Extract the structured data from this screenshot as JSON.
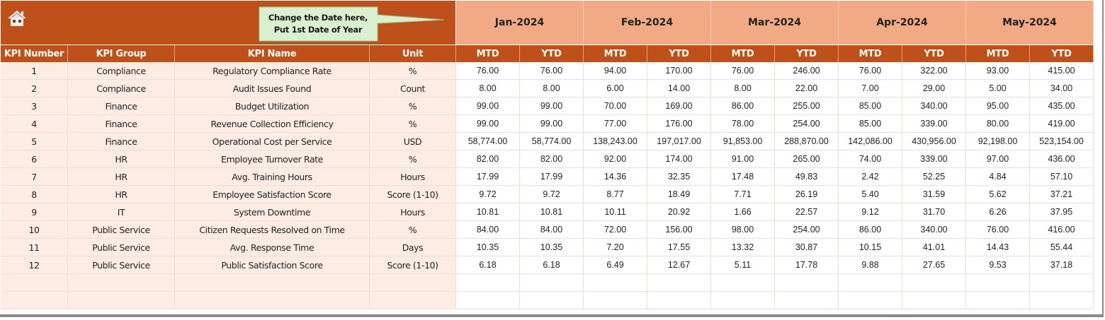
{
  "banner": {
    "home_icon": "home-icon",
    "callout_line1": "Change the Date here,",
    "callout_line2": "Put 1st Date of Year"
  },
  "colors": {
    "header_dark": "#C0501A",
    "month_header": "#F2AA84",
    "left_cells": "#FDECE4",
    "callout_fill": "#D9F0CF"
  },
  "columns": {
    "kpi_number": "KPI Number",
    "kpi_group": "KPI Group",
    "kpi_name": "KPI Name",
    "unit": "Unit",
    "mtd": "MTD",
    "ytd": "YTD"
  },
  "months": [
    "Jan-2024",
    "Feb-2024",
    "Mar-2024",
    "Apr-2024",
    "May-2024"
  ],
  "rows": [
    {
      "num": "1",
      "group": "Compliance",
      "name": "Regulatory Compliance Rate",
      "unit": "%",
      "values": [
        "76.00",
        "76.00",
        "94.00",
        "170.00",
        "76.00",
        "246.00",
        "76.00",
        "322.00",
        "93.00",
        "415.00"
      ]
    },
    {
      "num": "2",
      "group": "Compliance",
      "name": "Audit Issues Found",
      "unit": "Count",
      "values": [
        "8.00",
        "8.00",
        "6.00",
        "14.00",
        "8.00",
        "22.00",
        "7.00",
        "29.00",
        "5.00",
        "34.00"
      ]
    },
    {
      "num": "3",
      "group": "Finance",
      "name": "Budget Utilization",
      "unit": "%",
      "values": [
        "99.00",
        "99.00",
        "70.00",
        "169.00",
        "86.00",
        "255.00",
        "85.00",
        "340.00",
        "95.00",
        "435.00"
      ]
    },
    {
      "num": "4",
      "group": "Finance",
      "name": "Revenue Collection Efficiency",
      "unit": "%",
      "values": [
        "99.00",
        "99.00",
        "77.00",
        "176.00",
        "78.00",
        "254.00",
        "85.00",
        "339.00",
        "80.00",
        "419.00"
      ]
    },
    {
      "num": "5",
      "group": "Finance",
      "name": "Operational Cost per Service",
      "unit": "USD",
      "values": [
        "58,774.00",
        "58,774.00",
        "138,243.00",
        "197,017.00",
        "91,853.00",
        "288,870.00",
        "142,086.00",
        "430,956.00",
        "92,198.00",
        "523,154.00"
      ]
    },
    {
      "num": "6",
      "group": "HR",
      "name": "Employee Turnover Rate",
      "unit": "%",
      "values": [
        "82.00",
        "82.00",
        "92.00",
        "174.00",
        "91.00",
        "265.00",
        "74.00",
        "339.00",
        "97.00",
        "436.00"
      ]
    },
    {
      "num": "7",
      "group": "HR",
      "name": "Avg. Training Hours",
      "unit": "Hours",
      "values": [
        "17.99",
        "17.99",
        "14.36",
        "32.35",
        "17.48",
        "49.83",
        "2.42",
        "52.25",
        "4.84",
        "57.10"
      ]
    },
    {
      "num": "8",
      "group": "HR",
      "name": "Employee Satisfaction Score",
      "unit": "Score (1-10)",
      "values": [
        "9.72",
        "9.72",
        "8.77",
        "18.49",
        "7.71",
        "26.19",
        "5.40",
        "31.59",
        "5.62",
        "37.21"
      ]
    },
    {
      "num": "9",
      "group": "IT",
      "name": "System Downtime",
      "unit": "Hours",
      "values": [
        "10.81",
        "10.81",
        "10.11",
        "20.92",
        "1.66",
        "22.57",
        "9.12",
        "31.70",
        "6.26",
        "37.95"
      ]
    },
    {
      "num": "10",
      "group": "Public Service",
      "name": "Citizen Requests Resolved on Time",
      "unit": "%",
      "values": [
        "84.00",
        "84.00",
        "72.00",
        "156.00",
        "98.00",
        "254.00",
        "86.00",
        "340.00",
        "76.00",
        "416.00"
      ]
    },
    {
      "num": "11",
      "group": "Public Service",
      "name": "Avg. Response Time",
      "unit": "Days",
      "values": [
        "10.35",
        "10.35",
        "7.20",
        "17.55",
        "13.32",
        "30.87",
        "10.15",
        "41.01",
        "14.43",
        "55.44"
      ]
    },
    {
      "num": "12",
      "group": "Public Service",
      "name": "Public Satisfaction Score",
      "unit": "Score (1-10)",
      "values": [
        "6.18",
        "6.18",
        "6.49",
        "12.67",
        "5.11",
        "17.78",
        "9.88",
        "27.65",
        "9.53",
        "37.18"
      ]
    },
    {
      "num": "",
      "group": "",
      "name": "",
      "unit": "",
      "values": [
        "",
        "",
        "",
        "",
        "",
        "",
        "",
        "",
        "",
        ""
      ]
    },
    {
      "num": "",
      "group": "",
      "name": "",
      "unit": "",
      "values": [
        "",
        "",
        "",
        "",
        "",
        "",
        "",
        "",
        "",
        ""
      ]
    }
  ]
}
